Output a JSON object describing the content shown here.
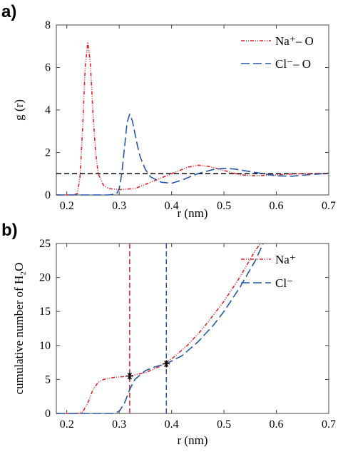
{
  "panels": {
    "a": {
      "label": "a)"
    },
    "b": {
      "label": "b)"
    }
  },
  "chart_data": [
    {
      "type": "line",
      "panel": "a",
      "xlabel": "r (nm)",
      "ylabel": "g (r)",
      "xlim": [
        0.18,
        0.7
      ],
      "ylim": [
        0,
        8
      ],
      "xticks": [
        0.2,
        0.3,
        0.4,
        0.5,
        0.6,
        0.7
      ],
      "xtick_labels": [
        "0.2",
        "0.3",
        "0.4",
        "0.5",
        "0.6",
        "0.7"
      ],
      "yticks": [
        0,
        2,
        4,
        6,
        8
      ],
      "ytick_labels": [
        "0",
        "2",
        "4",
        "6",
        "8"
      ],
      "legend_position": "top-right",
      "reference_line": {
        "y": 1,
        "style": "dashed",
        "color": "#000000"
      },
      "series": [
        {
          "name": "Na⁺– O",
          "color": "#e0242b",
          "style": "dash-dot",
          "x": [
            0.18,
            0.21,
            0.22,
            0.225,
            0.23,
            0.235,
            0.24,
            0.245,
            0.25,
            0.255,
            0.26,
            0.27,
            0.28,
            0.3,
            0.33,
            0.36,
            0.4,
            0.43,
            0.45,
            0.47,
            0.5,
            0.53,
            0.56,
            0.6,
            0.65,
            0.7
          ],
          "y": [
            0,
            0,
            0.05,
            0.8,
            3.0,
            6.0,
            7.2,
            6.2,
            3.8,
            2.0,
            1.0,
            0.45,
            0.3,
            0.25,
            0.3,
            0.6,
            1.0,
            1.3,
            1.4,
            1.35,
            1.15,
            0.95,
            0.9,
            0.95,
            1.0,
            1.02
          ]
        },
        {
          "name": "Cl⁻– O",
          "color": "#2456a8",
          "style": "long-dash",
          "x": [
            0.18,
            0.28,
            0.295,
            0.3,
            0.305,
            0.31,
            0.315,
            0.32,
            0.325,
            0.33,
            0.335,
            0.34,
            0.35,
            0.36,
            0.38,
            0.4,
            0.42,
            0.45,
            0.48,
            0.5,
            0.52,
            0.55,
            0.6,
            0.63,
            0.66,
            0.7
          ],
          "y": [
            0,
            0,
            0.05,
            0.3,
            1.0,
            2.2,
            3.4,
            3.8,
            3.5,
            2.9,
            2.3,
            1.8,
            1.2,
            0.85,
            0.6,
            0.55,
            0.7,
            1.0,
            1.2,
            1.25,
            1.22,
            1.1,
            0.9,
            0.88,
            0.95,
            1.02
          ]
        }
      ]
    },
    {
      "type": "line",
      "panel": "b",
      "xlabel": "r (nm)",
      "ylabel": "cumulative  number  of H₂O",
      "xlim": [
        0.18,
        0.7
      ],
      "ylim": [
        0,
        25
      ],
      "xticks": [
        0.2,
        0.3,
        0.4,
        0.5,
        0.6,
        0.7
      ],
      "xtick_labels": [
        "0.2",
        "0.3",
        "0.4",
        "0.5",
        "0.6",
        "0.7"
      ],
      "yticks": [
        0,
        5,
        10,
        15,
        20,
        25
      ],
      "ytick_labels": [
        "0",
        "5",
        "10",
        "15",
        "20",
        "25"
      ],
      "legend_position": "top-right",
      "vertical_lines": [
        {
          "x": 0.32,
          "color": "#e0242b",
          "style": "dashed"
        },
        {
          "x": 0.39,
          "color": "#2456a8",
          "style": "dashed"
        }
      ],
      "markers": [
        {
          "x": 0.32,
          "y": 5.5,
          "symbol": "*"
        },
        {
          "x": 0.39,
          "y": 7.3,
          "symbol": "*"
        }
      ],
      "series": [
        {
          "name": "Na⁺",
          "color": "#e0242b",
          "style": "dash-dot",
          "x": [
            0.18,
            0.22,
            0.23,
            0.24,
            0.25,
            0.26,
            0.27,
            0.29,
            0.32,
            0.35,
            0.38,
            0.4,
            0.43,
            0.46,
            0.5,
            0.53,
            0.56,
            0.57
          ],
          "y": [
            0,
            0,
            0.2,
            1.5,
            3.5,
            4.6,
            5.0,
            5.3,
            5.5,
            6.0,
            7.0,
            8.0,
            10.0,
            12.5,
            16.5,
            20.0,
            24.0,
            25.0
          ]
        },
        {
          "name": "Cl⁻",
          "color": "#2456a8",
          "style": "long-dash",
          "x": [
            0.18,
            0.29,
            0.3,
            0.31,
            0.32,
            0.33,
            0.35,
            0.37,
            0.39,
            0.42,
            0.45,
            0.48,
            0.5,
            0.53,
            0.56,
            0.57,
            0.575
          ],
          "y": [
            0,
            0,
            0.3,
            1.5,
            3.5,
            5.0,
            6.3,
            6.9,
            7.3,
            8.5,
            10.5,
            13.0,
            15.0,
            18.5,
            22.5,
            24.2,
            25.0
          ]
        }
      ]
    }
  ]
}
